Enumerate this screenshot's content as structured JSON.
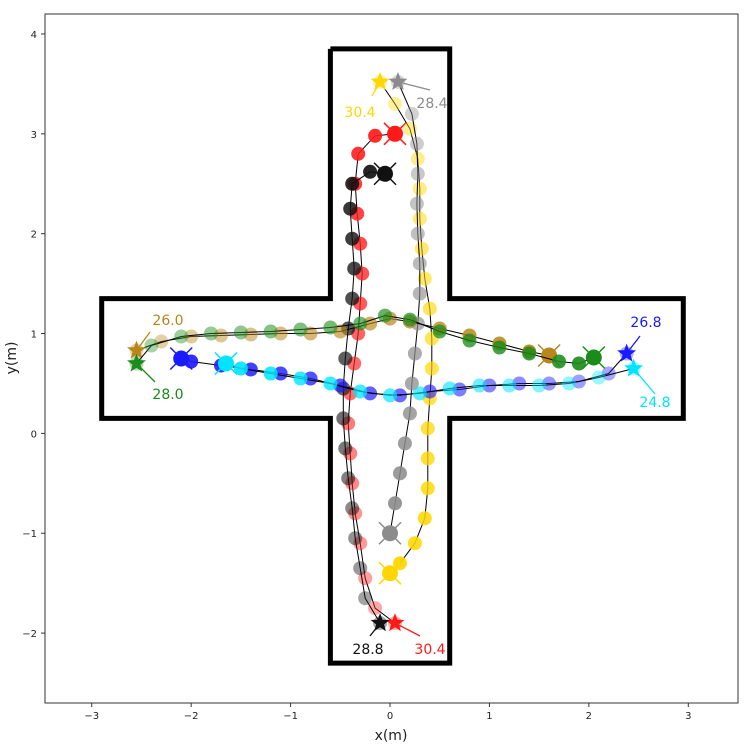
{
  "chart_data": {
    "type": "scatter",
    "xlabel": "x(m)",
    "ylabel": "y(m)",
    "xlim": [
      -3.47,
      3.5
    ],
    "ylim": [
      -2.7,
      4.2
    ],
    "xticks": [
      "−3",
      "−2",
      "−1",
      "0",
      "1",
      "2",
      "3"
    ],
    "xtick_values": [
      -3,
      -2,
      -1,
      0,
      1,
      2,
      3
    ],
    "yticks": [
      "−2",
      "−1",
      "0",
      "1",
      "2",
      "3",
      "4"
    ],
    "ytick_values": [
      -2,
      -1,
      0,
      1,
      2,
      3,
      4
    ],
    "grid": false,
    "boundary": [
      [
        -0.6,
        3.85
      ],
      [
        0.6,
        3.85
      ],
      [
        0.6,
        1.35
      ],
      [
        2.95,
        1.35
      ],
      [
        2.95,
        0.15
      ],
      [
        0.6,
        0.15
      ],
      [
        0.6,
        -2.3
      ],
      [
        -0.6,
        -2.3
      ],
      [
        -0.6,
        0.15
      ],
      [
        -2.9,
        0.15
      ],
      [
        -2.9,
        1.35
      ],
      [
        -0.6,
        1.35
      ],
      [
        -0.6,
        3.85
      ]
    ],
    "series": [
      {
        "color": "#ff1a1a",
        "end_label": "30.4",
        "start": [
          0.05,
          -1.9
        ],
        "goal": [
          0.05,
          3.0
        ],
        "points": [
          [
            0.05,
            -1.9
          ],
          [
            -0.15,
            -1.75
          ],
          [
            -0.25,
            -1.45
          ],
          [
            -0.3,
            -1.1
          ],
          [
            -0.35,
            -0.8
          ],
          [
            -0.38,
            -0.5
          ],
          [
            -0.4,
            -0.2
          ],
          [
            -0.42,
            0.1
          ],
          [
            -0.4,
            0.4
          ],
          [
            -0.36,
            0.7
          ],
          [
            -0.32,
            1.0
          ],
          [
            -0.3,
            1.3
          ],
          [
            -0.28,
            1.6
          ],
          [
            -0.3,
            1.9
          ],
          [
            -0.33,
            2.2
          ],
          [
            -0.35,
            2.5
          ],
          [
            -0.32,
            2.8
          ],
          [
            -0.15,
            2.98
          ],
          [
            0.05,
            3.0
          ]
        ]
      },
      {
        "color": "#111111",
        "end_label": "28.8",
        "start": [
          -0.1,
          -1.9
        ],
        "goal": [
          -0.05,
          2.6
        ],
        "points": [
          [
            -0.1,
            -1.9
          ],
          [
            -0.25,
            -1.65
          ],
          [
            -0.3,
            -1.35
          ],
          [
            -0.35,
            -1.05
          ],
          [
            -0.38,
            -0.75
          ],
          [
            -0.42,
            -0.45
          ],
          [
            -0.45,
            -0.15
          ],
          [
            -0.47,
            0.15
          ],
          [
            -0.47,
            0.45
          ],
          [
            -0.45,
            0.75
          ],
          [
            -0.42,
            1.05
          ],
          [
            -0.38,
            1.35
          ],
          [
            -0.36,
            1.65
          ],
          [
            -0.38,
            1.95
          ],
          [
            -0.4,
            2.25
          ],
          [
            -0.38,
            2.5
          ],
          [
            -0.2,
            2.62
          ],
          [
            -0.05,
            2.6
          ]
        ]
      },
      {
        "color": "#ffd700",
        "end_label": "30.4",
        "start": [
          -0.1,
          3.52
        ],
        "goal": [
          0.0,
          -1.4
        ],
        "points": [
          [
            -0.1,
            3.52
          ],
          [
            0.05,
            3.3
          ],
          [
            0.2,
            3.05
          ],
          [
            0.28,
            2.75
          ],
          [
            0.3,
            2.45
          ],
          [
            0.3,
            2.15
          ],
          [
            0.32,
            1.85
          ],
          [
            0.35,
            1.55
          ],
          [
            0.4,
            1.25
          ],
          [
            0.42,
            0.95
          ],
          [
            0.42,
            0.65
          ],
          [
            0.4,
            0.35
          ],
          [
            0.38,
            0.05
          ],
          [
            0.38,
            -0.25
          ],
          [
            0.38,
            -0.55
          ],
          [
            0.35,
            -0.85
          ],
          [
            0.25,
            -1.1
          ],
          [
            0.1,
            -1.3
          ],
          [
            0.0,
            -1.4
          ]
        ]
      },
      {
        "color": "#8c8c8c",
        "end_label": "28.4",
        "start": [
          0.08,
          3.52
        ],
        "goal": [
          0.0,
          -1.0
        ],
        "points": [
          [
            0.08,
            3.52
          ],
          [
            0.22,
            3.2
          ],
          [
            0.27,
            2.9
          ],
          [
            0.28,
            2.6
          ],
          [
            0.27,
            2.3
          ],
          [
            0.28,
            2.0
          ],
          [
            0.3,
            1.7
          ],
          [
            0.3,
            1.4
          ],
          [
            0.28,
            1.1
          ],
          [
            0.25,
            0.8
          ],
          [
            0.22,
            0.5
          ],
          [
            0.2,
            0.2
          ],
          [
            0.15,
            -0.1
          ],
          [
            0.1,
            -0.4
          ],
          [
            0.05,
            -0.7
          ],
          [
            0.0,
            -1.0
          ]
        ]
      },
      {
        "color": "#1a1aff",
        "end_label": "26.8",
        "start": [
          2.38,
          0.8
        ],
        "goal": [
          -2.1,
          0.75
        ],
        "points": [
          [
            2.38,
            0.8
          ],
          [
            2.2,
            0.6
          ],
          [
            1.9,
            0.52
          ],
          [
            1.6,
            0.5
          ],
          [
            1.3,
            0.5
          ],
          [
            1.0,
            0.48
          ],
          [
            0.7,
            0.44
          ],
          [
            0.4,
            0.42
          ],
          [
            0.1,
            0.38
          ],
          [
            -0.2,
            0.4
          ],
          [
            -0.5,
            0.48
          ],
          [
            -0.8,
            0.55
          ],
          [
            -1.1,
            0.6
          ],
          [
            -1.4,
            0.64
          ],
          [
            -1.7,
            0.68
          ],
          [
            -2.0,
            0.72
          ],
          [
            -2.1,
            0.75
          ]
        ]
      },
      {
        "color": "#00e5ff",
        "end_label": "24.8",
        "start": [
          2.45,
          0.65
        ],
        "goal": [
          -1.65,
          0.7
        ],
        "points": [
          [
            2.45,
            0.65
          ],
          [
            2.1,
            0.56
          ],
          [
            1.8,
            0.5
          ],
          [
            1.5,
            0.48
          ],
          [
            1.2,
            0.48
          ],
          [
            0.9,
            0.48
          ],
          [
            0.6,
            0.45
          ],
          [
            0.3,
            0.4
          ],
          [
            0.0,
            0.38
          ],
          [
            -0.3,
            0.42
          ],
          [
            -0.6,
            0.5
          ],
          [
            -0.9,
            0.55
          ],
          [
            -1.2,
            0.6
          ],
          [
            -1.5,
            0.65
          ],
          [
            -1.65,
            0.7
          ]
        ]
      },
      {
        "color": "#b8861b",
        "end_label": "26.0",
        "start": [
          -2.55,
          0.83
        ],
        "goal": [
          1.6,
          0.78
        ],
        "points": [
          [
            -2.55,
            0.83
          ],
          [
            -2.3,
            0.92
          ],
          [
            -2.0,
            0.97
          ],
          [
            -1.7,
            0.98
          ],
          [
            -1.4,
            0.99
          ],
          [
            -1.1,
            1.0
          ],
          [
            -0.8,
            1.0
          ],
          [
            -0.5,
            1.02
          ],
          [
            -0.2,
            1.1
          ],
          [
            0.0,
            1.15
          ],
          [
            0.2,
            1.12
          ],
          [
            0.5,
            1.05
          ],
          [
            0.8,
            0.98
          ],
          [
            1.1,
            0.9
          ],
          [
            1.4,
            0.82
          ],
          [
            1.6,
            0.78
          ]
        ]
      },
      {
        "color": "#1a8c1a",
        "end_label": "28.0",
        "start": [
          -2.55,
          0.7
        ],
        "goal": [
          2.05,
          0.76
        ],
        "points": [
          [
            -2.55,
            0.7
          ],
          [
            -2.4,
            0.88
          ],
          [
            -2.1,
            0.97
          ],
          [
            -1.8,
            1.0
          ],
          [
            -1.5,
            1.01
          ],
          [
            -1.2,
            1.02
          ],
          [
            -0.9,
            1.04
          ],
          [
            -0.6,
            1.06
          ],
          [
            -0.3,
            1.1
          ],
          [
            -0.05,
            1.18
          ],
          [
            0.2,
            1.14
          ],
          [
            0.5,
            1.02
          ],
          [
            0.8,
            0.93
          ],
          [
            1.1,
            0.86
          ],
          [
            1.4,
            0.8
          ],
          [
            1.7,
            0.72
          ],
          [
            1.9,
            0.7
          ],
          [
            2.05,
            0.76
          ]
        ]
      }
    ]
  }
}
